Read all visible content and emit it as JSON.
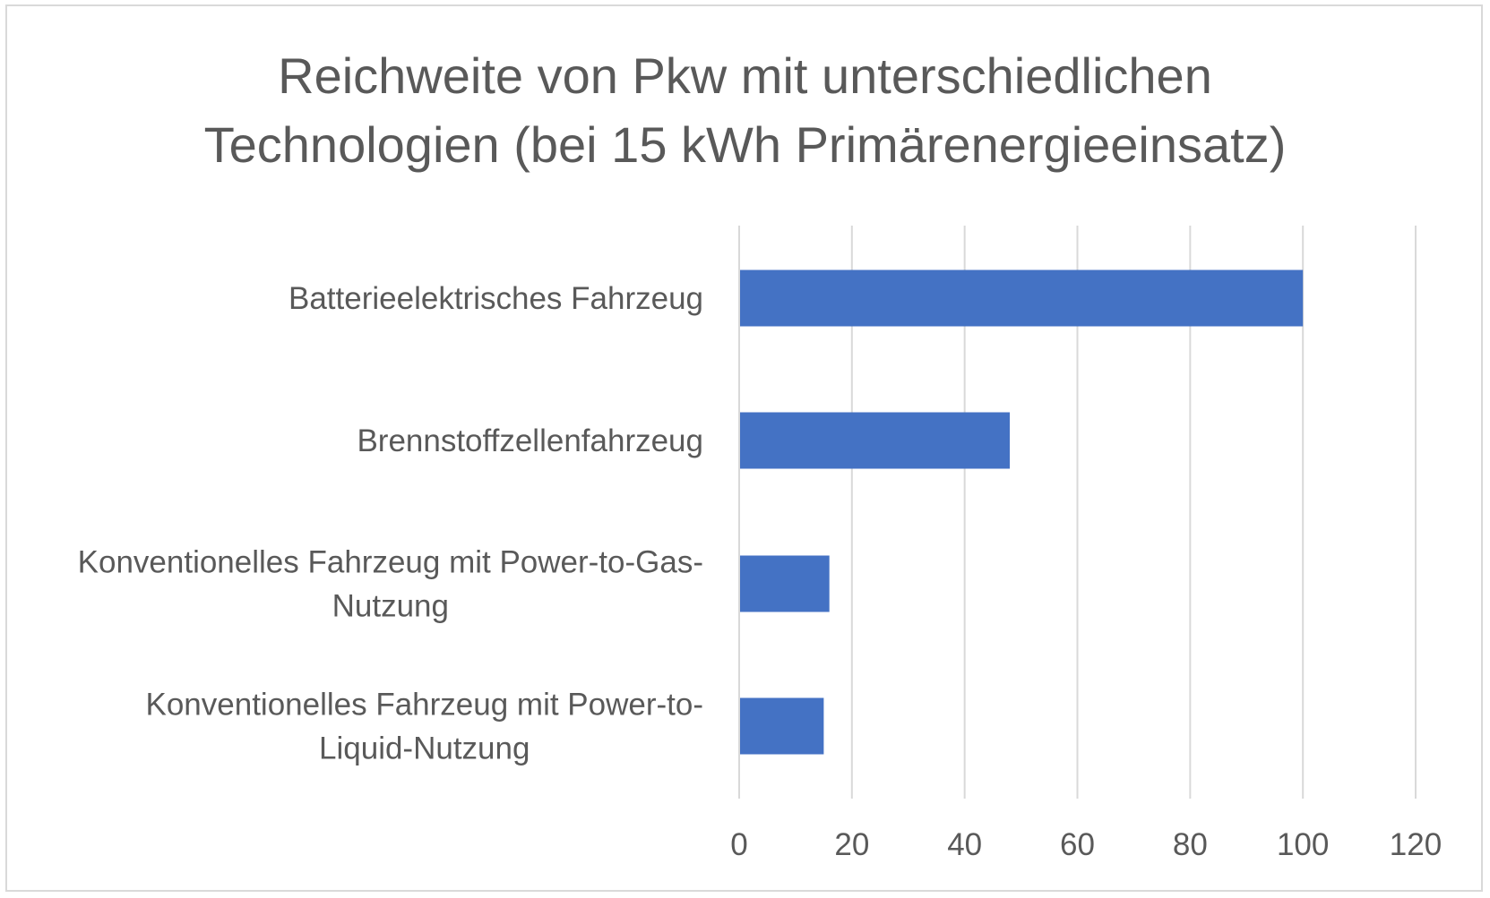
{
  "chart_data": {
    "type": "bar",
    "orientation": "horizontal",
    "title_lines": [
      "Reichweite von Pkw mit unterschiedlichen",
      "Technologien (bei 15 kWh Primärenergieeinsatz)"
    ],
    "categories": [
      [
        "Batterieelektrisches Fahrzeug"
      ],
      [
        "Brennstoffzellenfahrzeug"
      ],
      [
        "Konventionelles Fahrzeug mit Power-to-Gas-",
        "Nutzung"
      ],
      [
        "Konventionelles Fahrzeug mit Power-to-",
        "Liquid-Nutzung"
      ]
    ],
    "values": [
      100,
      48,
      16,
      15
    ],
    "xlabel": "",
    "ylabel": "",
    "xlim": [
      0,
      120
    ],
    "xticks": [
      "0",
      "20",
      "40",
      "60",
      "80",
      "100",
      "120"
    ],
    "grid": true,
    "legend": "none",
    "bar_color": "#4472c4",
    "grid_color": "#d9d9d9",
    "text_color": "#595959"
  }
}
